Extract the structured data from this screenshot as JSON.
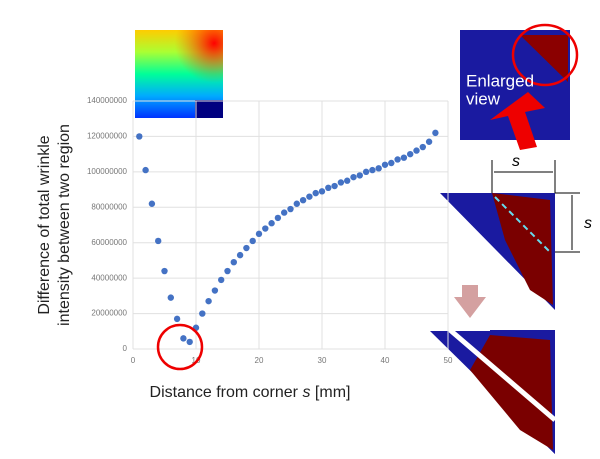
{
  "chart_data": {
    "type": "scatter",
    "y_label": [
      "Difference of total wrinkle",
      "intensity between two region"
    ],
    "x_label": {
      "text": "Distance from corner",
      "var": "s",
      "unit": "[mm]"
    },
    "x": [
      1,
      2,
      3,
      4,
      5,
      6,
      7,
      8,
      9,
      10,
      11,
      12,
      13,
      14,
      15,
      16,
      17,
      18,
      19,
      20,
      21,
      22,
      23,
      24,
      25,
      26,
      27,
      28,
      29,
      30,
      31,
      32,
      33,
      34,
      35,
      36,
      37,
      38,
      39,
      40,
      41,
      42,
      43,
      44,
      45,
      46,
      47,
      48
    ],
    "series": [
      {
        "color": "#4472c4",
        "values": [
          120000000,
          101000000,
          82000000,
          61000000,
          44000000,
          29000000,
          17000000,
          6000000,
          4000000,
          12000000,
          20000000,
          27000000,
          33000000,
          39000000,
          44000000,
          49000000,
          53000000,
          57000000,
          61000000,
          65000000,
          68000000,
          71000000,
          74000000,
          77000000,
          79000000,
          82000000,
          84000000,
          86000000,
          88000000,
          89000000,
          91000000,
          92000000,
          94000000,
          95000000,
          97000000,
          98000000,
          100000000,
          101000000,
          102000000,
          104000000,
          105000000,
          107000000,
          108000000,
          110000000,
          112000000,
          114000000,
          117000000,
          122000000
        ]
      }
    ],
    "xlim": [
      0,
      50
    ],
    "xticks": [
      0,
      10,
      20,
      30,
      40,
      50
    ],
    "ylim": [
      0,
      140000000
    ],
    "yticks": [
      0,
      20000000,
      40000000,
      60000000,
      80000000,
      100000000,
      120000000,
      140000000
    ],
    "grid": true,
    "annotations": {
      "enlarged": [
        "Enlarged",
        "view"
      ],
      "s_horizontal": "s",
      "s_vertical": "s"
    }
  }
}
